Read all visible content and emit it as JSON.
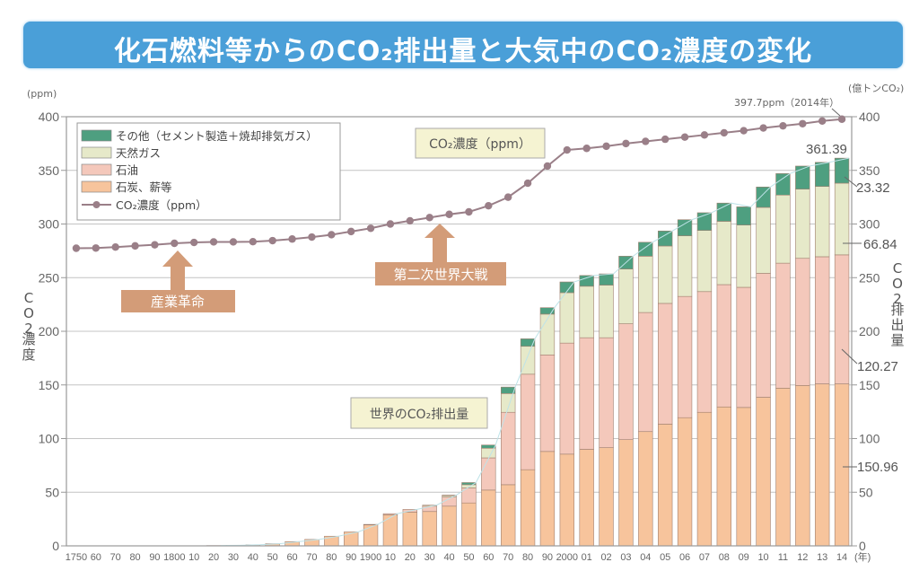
{
  "title": "化石燃料等からのCO₂排出量と大気中のCO₂濃度の変化",
  "chart_data": {
    "type": "bar+line",
    "title": "化石燃料等からのCO₂排出量と大気中のCO₂濃度の変化",
    "left_axis": {
      "unit": "(ppm)",
      "label": "CO₂濃度",
      "ylim": [
        0,
        400
      ],
      "ticks": [
        "0",
        "50",
        "100",
        "150",
        "200",
        "250",
        "300",
        "350",
        "400"
      ]
    },
    "right_axis": {
      "unit": "(億トンCO₂)",
      "label": "CO₂排出量",
      "ylim": [
        0,
        400
      ],
      "ticks": [
        "0",
        "50",
        "100",
        "150",
        "200",
        "250",
        "300",
        "350",
        "400"
      ]
    },
    "x_unit": "(年)",
    "categories": [
      "1750",
      "60",
      "70",
      "80",
      "90",
      "1800",
      "10",
      "20",
      "30",
      "40",
      "50",
      "60",
      "70",
      "80",
      "90",
      "1900",
      "10",
      "20",
      "30",
      "40",
      "50",
      "60",
      "70",
      "80",
      "90",
      "2000",
      "01",
      "02",
      "03",
      "04",
      "05",
      "06",
      "07",
      "08",
      "09",
      "10",
      "11",
      "12",
      "13",
      "14"
    ],
    "years": [
      1750,
      1760,
      1770,
      1780,
      1790,
      1800,
      1810,
      1820,
      1830,
      1840,
      1850,
      1860,
      1870,
      1880,
      1890,
      1900,
      1910,
      1920,
      1930,
      1940,
      1950,
      1960,
      1970,
      1980,
      1990,
      2000,
      2001,
      2002,
      2003,
      2004,
      2005,
      2006,
      2007,
      2008,
      2009,
      2010,
      2011,
      2012,
      2013,
      2014
    ],
    "series": [
      {
        "name": "石炭、薪等",
        "kind": "bar",
        "color": "#f7c49c",
        "values": [
          0,
          0,
          0,
          0,
          0,
          0,
          0,
          0.3,
          0.5,
          1,
          2,
          4,
          6,
          9,
          13,
          19.5,
          29,
          31.5,
          32,
          37,
          40,
          52,
          57,
          71,
          88,
          85.5,
          90,
          91.5,
          99,
          106.5,
          113.5,
          119.5,
          124.5,
          129.5,
          129,
          138.5,
          147,
          149.5,
          151,
          150.96
        ]
      },
      {
        "name": "石油",
        "kind": "bar",
        "color": "#f4c8bb",
        "values": [
          0,
          0,
          0,
          0,
          0,
          0,
          0,
          0,
          0,
          0,
          0,
          0,
          0,
          0,
          0,
          0.5,
          1,
          2.5,
          5,
          8.5,
          14,
          30,
          67.5,
          89,
          90,
          103.5,
          104,
          102.5,
          108,
          111,
          112.5,
          113,
          112.5,
          114,
          112,
          115.5,
          116.5,
          118.5,
          118.5,
          120.27
        ]
      },
      {
        "name": "天然ガス",
        "kind": "bar",
        "color": "#e6e9c9",
        "values": [
          0,
          0,
          0,
          0,
          0,
          0,
          0,
          0,
          0,
          0,
          0,
          0,
          0,
          0,
          0,
          0,
          0,
          0,
          1,
          1.5,
          3,
          9,
          17.5,
          26,
          38,
          47,
          48,
          49,
          51,
          52.5,
          53.5,
          56.5,
          57,
          59,
          58,
          61.5,
          63.5,
          64.5,
          65.5,
          66.84
        ]
      },
      {
        "name": "その他（セメント製造＋焼却排気ガス）",
        "kind": "bar",
        "color": "#4e9f80",
        "values": [
          0,
          0,
          0,
          0,
          0,
          0,
          0,
          0,
          0,
          0,
          0,
          0,
          0,
          0,
          0,
          0,
          0,
          0,
          0,
          0.3,
          2,
          3,
          6,
          7,
          6,
          10,
          10,
          10.5,
          12,
          13,
          14,
          15,
          16.5,
          17,
          17,
          19,
          20,
          21.5,
          22.5,
          23.32
        ]
      },
      {
        "name": "CO₂濃度（ppm）",
        "kind": "line",
        "color": "#9a7f88",
        "axis": "left",
        "values": [
          277.4,
          277.6,
          278.5,
          279.6,
          280.6,
          282,
          282.8,
          283.3,
          283.3,
          283.5,
          284.5,
          286,
          287.8,
          290,
          293,
          296,
          300,
          303,
          306,
          309,
          311.3,
          317,
          325,
          338,
          354,
          369,
          370.5,
          372.5,
          375,
          377,
          379,
          381,
          383,
          385,
          387,
          389.5,
          391.5,
          393.5,
          396,
          397.7
        ]
      }
    ],
    "legend": [
      "その他（セメント製造＋焼却排気ガス）",
      "天然ガス",
      "石油",
      "石炭、薪等",
      "CO₂濃度（ppm）"
    ],
    "legend_position": "top-left",
    "grid": "horizontal",
    "annotations": {
      "concentration_label": "CO₂濃度（ppm）",
      "emissions_label": "世界のCO₂排出量",
      "industrial_revolution": "産業革命",
      "ww2": "第二次世界大戦",
      "latest_ppm": "397.7ppm（2014年）",
      "total_2014": "361.39",
      "other_2014": "23.32",
      "gas_2014": "66.84",
      "oil_2014": "120.27",
      "coal_2014": "150.96"
    }
  }
}
